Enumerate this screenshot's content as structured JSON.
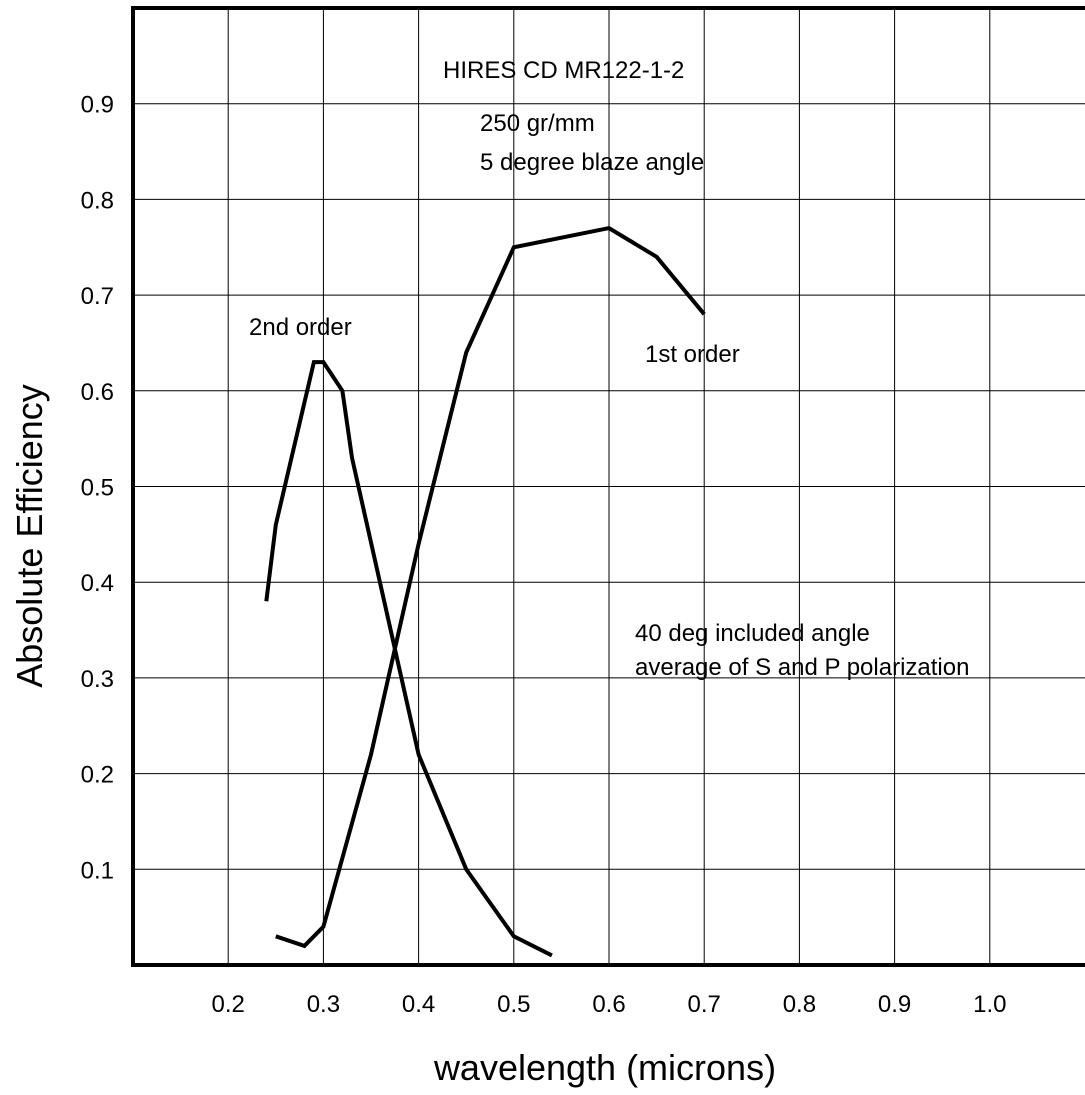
{
  "chart_data": {
    "type": "line",
    "title": "HIRES CD  MR122-1-2",
    "xlabel": "wavelength (microns)",
    "ylabel": "Absolute  Efficiency",
    "xlim": [
      0.1,
      1.1
    ],
    "ylim": [
      0.0,
      1.0
    ],
    "x_ticks": [
      0.2,
      0.3,
      0.4,
      0.5,
      0.6,
      0.7,
      0.8,
      0.9,
      1.0
    ],
    "x_tick_labels": [
      "0.2",
      "0.3",
      "0.4",
      "0.5",
      "0.6",
      "0.7",
      "0.8",
      "0.9",
      "1.0"
    ],
    "y_ticks": [
      0.1,
      0.2,
      0.3,
      0.4,
      0.5,
      0.6,
      0.7,
      0.8,
      0.9
    ],
    "y_tick_labels": [
      "0.1",
      "0.2",
      "0.3",
      "0.4",
      "0.5",
      "0.6",
      "0.7",
      "0.8",
      "0.9"
    ],
    "grid": true,
    "legend": "none",
    "series": [
      {
        "name": "1st order",
        "color": "#000000",
        "points": [
          [
            0.25,
            0.03
          ],
          [
            0.28,
            0.02
          ],
          [
            0.3,
            0.04
          ],
          [
            0.35,
            0.22
          ],
          [
            0.4,
            0.44
          ],
          [
            0.45,
            0.64
          ],
          [
            0.5,
            0.75
          ],
          [
            0.6,
            0.77
          ],
          [
            0.65,
            0.74
          ],
          [
            0.7,
            0.68
          ]
        ]
      },
      {
        "name": "2nd order",
        "color": "#000000",
        "points": [
          [
            0.24,
            0.38
          ],
          [
            0.25,
            0.46
          ],
          [
            0.29,
            0.63
          ],
          [
            0.3,
            0.63
          ],
          [
            0.32,
            0.6
          ],
          [
            0.33,
            0.53
          ],
          [
            0.4,
            0.22
          ],
          [
            0.45,
            0.1
          ],
          [
            0.5,
            0.03
          ],
          [
            0.54,
            0.01
          ]
        ]
      }
    ],
    "annotations": [
      {
        "id": "grating",
        "lines": [
          "250 gr/mm",
          "5 degree blaze angle"
        ],
        "x": 0.355,
        "y": 0.89
      },
      {
        "id": "config",
        "lines": [
          "40 deg included angle",
          "average of S and P polarization"
        ],
        "x": 0.615,
        "y": 0.375
      }
    ]
  }
}
